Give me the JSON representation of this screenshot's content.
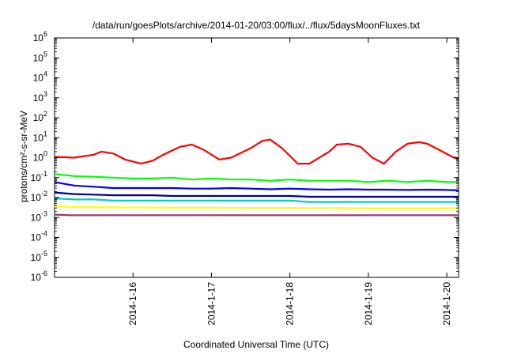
{
  "chart_data": {
    "type": "line",
    "title": "/data/run/goesPlots/archive/2014-01-20/03:00/flux/../flux/5daysMoonFluxes.txt",
    "xlabel": "Coordinated Universal Time (UTC)",
    "ylabel": "protons/cm²-s-sr-MeV",
    "yscale": "log",
    "ylim": [
      1e-06,
      1000000.0
    ],
    "xlim": [
      15.0,
      20.15
    ],
    "grid": false,
    "y_ticks": [
      {
        "base": "10",
        "exp": "-6",
        "value": -6
      },
      {
        "base": "10",
        "exp": "-5",
        "value": -5
      },
      {
        "base": "10",
        "exp": "-4",
        "value": -4
      },
      {
        "base": "10",
        "exp": "-3",
        "value": -3
      },
      {
        "base": "10",
        "exp": "-2",
        "value": -2
      },
      {
        "base": "10",
        "exp": "-1",
        "value": -1
      },
      {
        "base": "10",
        "exp": "0",
        "value": 0
      },
      {
        "base": "10",
        "exp": "1",
        "value": 1
      },
      {
        "base": "10",
        "exp": "2",
        "value": 2
      },
      {
        "base": "10",
        "exp": "3",
        "value": 3
      },
      {
        "base": "10",
        "exp": "4",
        "value": 4
      },
      {
        "base": "10",
        "exp": "5",
        "value": 5
      },
      {
        "base": "10",
        "exp": "6",
        "value": 6
      }
    ],
    "x_ticks": [
      {
        "label": "2014-1-16",
        "value": 16
      },
      {
        "label": "2014-1-17",
        "value": 17
      },
      {
        "label": "2014-1-18",
        "value": 18
      },
      {
        "label": "2014-1-19",
        "value": 19
      },
      {
        "label": "2014-1-20",
        "value": 20
      }
    ],
    "series": [
      {
        "color": "#ff0000",
        "x": [
          15.0,
          15.25,
          15.5,
          15.6,
          15.75,
          15.9,
          16.1,
          16.25,
          16.4,
          16.6,
          16.75,
          16.9,
          17.1,
          17.25,
          17.5,
          17.65,
          17.75,
          17.9,
          18.1,
          18.25,
          18.5,
          18.6,
          18.75,
          18.9,
          19.05,
          19.2,
          19.35,
          19.5,
          19.65,
          19.75,
          19.9,
          20.05,
          20.15
        ],
        "y": [
          1.1,
          1.0,
          1.4,
          2.0,
          1.6,
          0.8,
          0.5,
          0.7,
          1.5,
          3.5,
          4.5,
          2.5,
          0.8,
          1.0,
          3.0,
          7.0,
          8.0,
          3.0,
          0.5,
          0.5,
          2.0,
          4.5,
          5.0,
          3.5,
          1.0,
          0.5,
          2.0,
          5.0,
          6.0,
          5.0,
          2.5,
          1.2,
          0.8
        ]
      },
      {
        "color": "#00ff00",
        "x": [
          15.0,
          15.25,
          15.5,
          15.75,
          16.0,
          16.25,
          16.5,
          16.75,
          17.0,
          17.25,
          17.5,
          17.75,
          18.0,
          18.25,
          18.5,
          18.75,
          19.0,
          19.25,
          19.5,
          19.75,
          20.0,
          20.15
        ],
        "y": [
          0.15,
          0.12,
          0.11,
          0.1,
          0.09,
          0.09,
          0.1,
          0.08,
          0.09,
          0.08,
          0.08,
          0.07,
          0.08,
          0.07,
          0.07,
          0.07,
          0.06,
          0.07,
          0.06,
          0.07,
          0.06,
          0.06
        ]
      },
      {
        "color": "#0000ff",
        "x": [
          15.0,
          15.25,
          15.5,
          15.75,
          16.0,
          16.25,
          16.5,
          16.75,
          17.0,
          17.25,
          17.5,
          17.75,
          18.0,
          18.25,
          18.5,
          18.75,
          19.0,
          19.25,
          19.5,
          19.75,
          20.0,
          20.15
        ],
        "y": [
          0.06,
          0.04,
          0.035,
          0.03,
          0.03,
          0.03,
          0.03,
          0.028,
          0.028,
          0.03,
          0.028,
          0.026,
          0.028,
          0.026,
          0.025,
          0.026,
          0.025,
          0.025,
          0.024,
          0.025,
          0.024,
          0.023
        ]
      },
      {
        "color": "#00008b",
        "x": [
          15.0,
          15.25,
          15.5,
          15.75,
          16.0,
          16.25,
          16.5,
          16.75,
          17.0,
          17.25,
          17.5,
          17.75,
          18.0,
          18.25,
          18.5,
          18.75,
          19.0,
          19.25,
          19.5,
          19.75,
          20.0,
          20.15
        ],
        "y": [
          0.018,
          0.015,
          0.014,
          0.013,
          0.013,
          0.013,
          0.012,
          0.012,
          0.012,
          0.012,
          0.012,
          0.012,
          0.012,
          0.011,
          0.011,
          0.011,
          0.011,
          0.011,
          0.011,
          0.011,
          0.011,
          0.011
        ]
      },
      {
        "color": "#00cccc",
        "x": [
          15.0,
          15.25,
          15.5,
          15.75,
          16.0,
          16.25,
          16.5,
          16.75,
          17.0,
          17.25,
          17.5,
          17.75,
          18.0,
          18.25,
          18.5,
          18.75,
          19.0,
          19.25,
          19.5,
          19.75,
          20.0,
          20.15
        ],
        "y": [
          0.009,
          0.008,
          0.008,
          0.007,
          0.007,
          0.007,
          0.007,
          0.007,
          0.007,
          0.007,
          0.007,
          0.007,
          0.007,
          0.006,
          0.006,
          0.006,
          0.006,
          0.006,
          0.006,
          0.006,
          0.006,
          0.006
        ]
      },
      {
        "color": "#ffff00",
        "x": [
          15.0,
          15.5,
          16.0,
          16.5,
          17.0,
          17.5,
          18.0,
          18.5,
          19.0,
          19.5,
          20.0,
          20.15
        ],
        "y": [
          0.0035,
          0.0033,
          0.0032,
          0.0031,
          0.0031,
          0.003,
          0.003,
          0.003,
          0.0029,
          0.0029,
          0.0029,
          0.0029
        ]
      },
      {
        "color": "#9b3a6e",
        "x": [
          15.0,
          15.2,
          15.5,
          15.75,
          16.0,
          16.25,
          16.5,
          16.75,
          17.0,
          17.25,
          17.5,
          17.75,
          18.0,
          18.25,
          18.5,
          18.75,
          19.0,
          19.25,
          19.5,
          19.75,
          20.0,
          20.15
        ],
        "y": [
          0.0014,
          0.0013,
          0.0013,
          0.0013,
          0.0013,
          0.0013,
          0.0013,
          0.0013,
          0.0013,
          0.0013,
          0.0013,
          0.0013,
          0.0013,
          0.0013,
          0.0013,
          0.0013,
          0.0013,
          0.0013,
          0.0013,
          0.0013,
          0.0013,
          0.0013
        ]
      }
    ]
  }
}
